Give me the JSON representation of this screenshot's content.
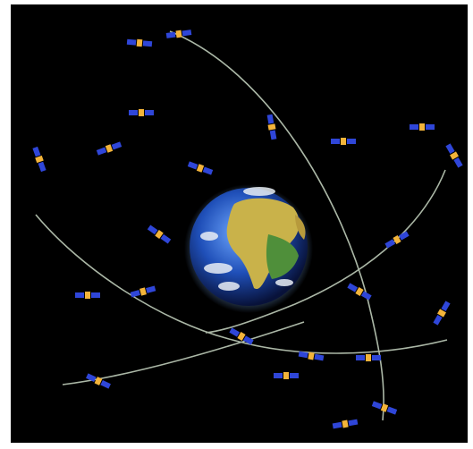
{
  "image": {
    "background_color": "#000000",
    "frame_color": "#ffffff",
    "subject": "earth-with-satellite-constellation",
    "orbit_color": "#c9d8c4",
    "satellite_panel_color": "#2f46d8",
    "satellite_body_color": "#f3b43a"
  }
}
